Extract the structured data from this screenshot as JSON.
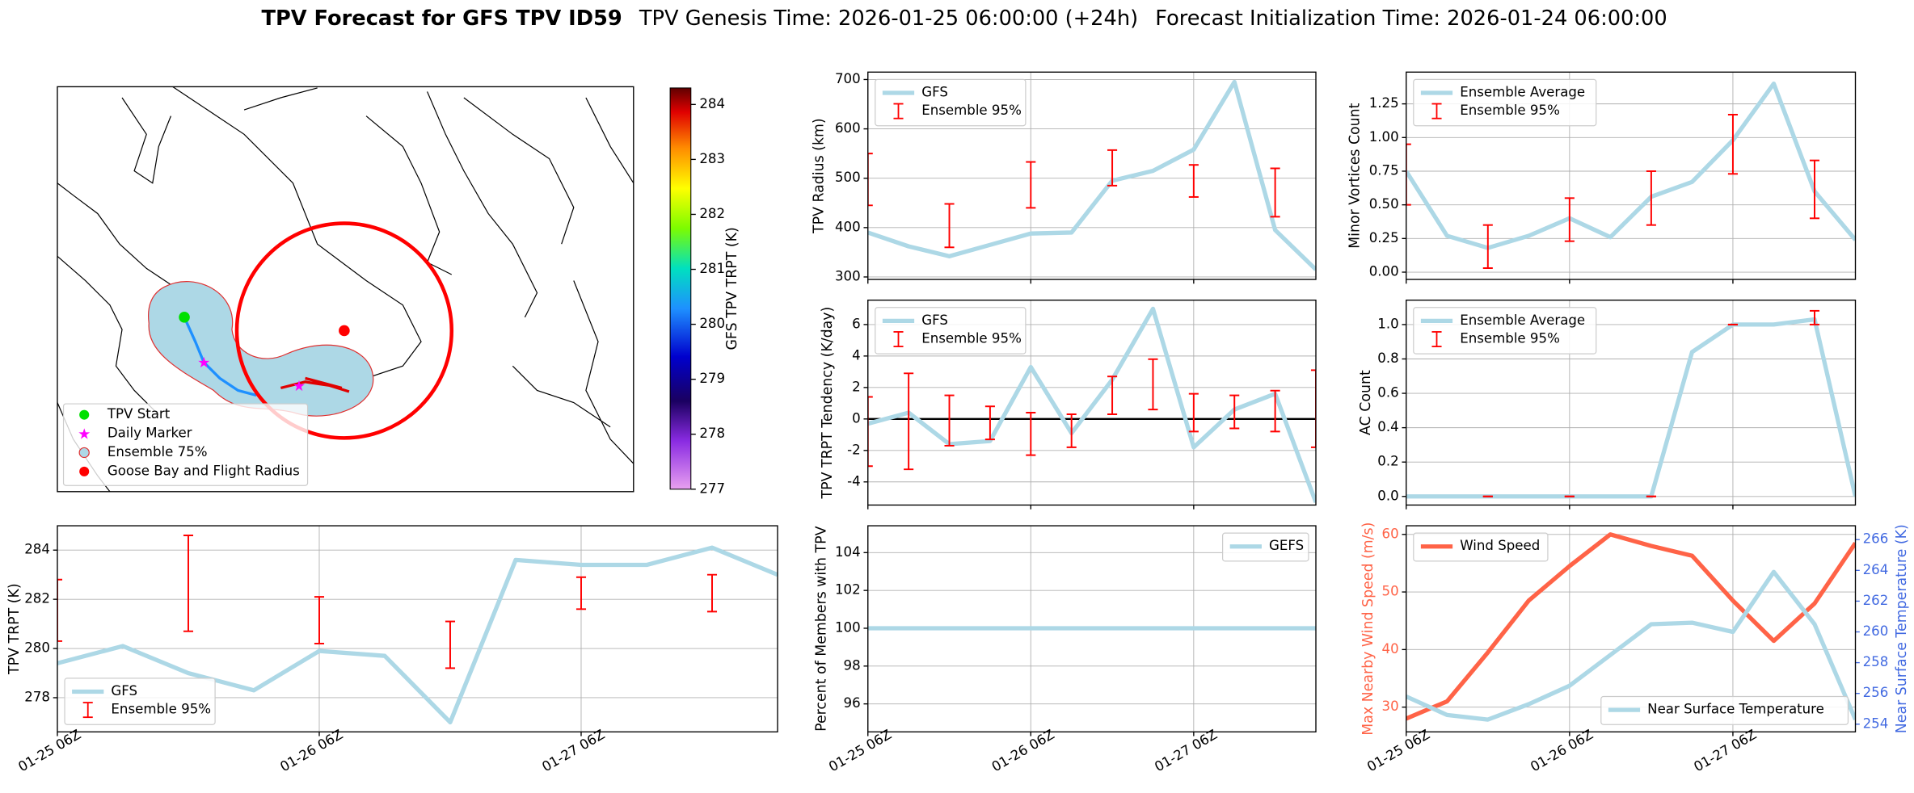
{
  "title": {
    "main": "TPV Forecast for GFS TPV ID59",
    "genesis": "TPV Genesis Time: 2026-01-25 06:00:00 (+24h)",
    "init": "Forecast Initialization Time: 2026-01-24 06:00:00"
  },
  "chart_data": [
    {
      "type": "map",
      "legend": [
        {
          "name": "TPV Start",
          "color": "#00e000"
        },
        {
          "name": "Daily Marker",
          "color": "#ff00ff"
        },
        {
          "name": "Ensemble 75%",
          "color": "#add8e6"
        },
        {
          "name": "Goose Bay and Flight Radius",
          "color": "#ff0000"
        }
      ],
      "colorbar": {
        "label": "GFS TPV TRPT (K)",
        "lim": [
          277,
          284.3
        ],
        "ticks": [
          277,
          278,
          279,
          280,
          281,
          282,
          283,
          284
        ]
      }
    },
    {
      "type": "line",
      "ylabel": "TPV Radius (km)",
      "x": [
        0,
        6,
        12,
        18,
        24,
        30,
        36,
        42,
        48,
        54,
        60,
        66
      ],
      "xlim": [
        0,
        66
      ],
      "xticks": [
        0,
        24,
        48
      ],
      "ylim": [
        295,
        715
      ],
      "yticks": [
        300,
        400,
        500,
        600,
        700
      ],
      "grid": true,
      "legend": "upper left",
      "series": [
        {
          "name": "GFS",
          "color": "#add8e6",
          "values": [
            390,
            362,
            342,
            365,
            388,
            390,
            495,
            515,
            558,
            695,
            395,
            315
          ]
        }
      ],
      "errorbars": {
        "name": "Ensemble 95%",
        "color": "#ff0000",
        "x": [
          0,
          12,
          24,
          36,
          48,
          60
        ],
        "low": [
          445,
          360,
          440,
          485,
          462,
          422
        ],
        "high": [
          550,
          448,
          533,
          557,
          527,
          520
        ]
      }
    },
    {
      "type": "line",
      "ylabel": "Minor Vortices Count",
      "x": [
        0,
        6,
        12,
        18,
        24,
        30,
        36,
        42,
        48,
        54,
        60,
        66
      ],
      "xlim": [
        0,
        66
      ],
      "xticks": [
        0,
        24,
        48
      ],
      "ylim": [
        -0.054,
        1.486
      ],
      "yticks": [
        {
          "value": 0,
          "label": "0.00"
        },
        {
          "value": 0.25,
          "label": "0.25"
        },
        {
          "value": 0.5,
          "label": "0.50"
        },
        {
          "value": 0.75,
          "label": "0.75"
        },
        {
          "value": 1,
          "label": "1.00"
        },
        {
          "value": 1.25,
          "label": "1.25"
        }
      ],
      "grid": true,
      "legend": "upper left",
      "series": [
        {
          "name": "Ensemble Average",
          "color": "#add8e6",
          "values": [
            0.75,
            0.27,
            0.18,
            0.27,
            0.4,
            0.26,
            0.56,
            0.67,
            0.98,
            1.4,
            0.6,
            0.24
          ]
        }
      ],
      "errorbars": {
        "name": "Ensemble 95%",
        "color": "#ff0000",
        "x": [
          0,
          12,
          24,
          36,
          48,
          60
        ],
        "low": [
          0.5,
          0.03,
          0.23,
          0.35,
          0.73,
          0.4
        ],
        "high": [
          0.95,
          0.35,
          0.55,
          0.75,
          1.17,
          0.83
        ]
      }
    },
    {
      "type": "line",
      "ylabel": "TPV TRPT Tendency (K/day)",
      "x": [
        0,
        6,
        12,
        18,
        24,
        30,
        36,
        42,
        48,
        54,
        60,
        66
      ],
      "xlim": [
        0,
        66
      ],
      "xticks": [
        0,
        24,
        48
      ],
      "ylim": [
        -5.47,
        7.55
      ],
      "yticks": [
        -4,
        -2,
        0,
        2,
        4,
        6
      ],
      "grid": true,
      "legend": "upper left",
      "hline": 0,
      "series": [
        {
          "name": "GFS",
          "color": "#add8e6",
          "values": [
            -0.3,
            0.4,
            -1.6,
            -1.4,
            3.3,
            -0.9,
            2.5,
            7.0,
            -1.8,
            0.6,
            1.6,
            -5.3
          ]
        }
      ],
      "errorbars": {
        "name": "Ensemble 95%",
        "color": "#ff0000",
        "x": [
          0,
          6,
          12,
          18,
          24,
          30,
          36,
          42,
          48,
          54,
          60,
          66
        ],
        "low": [
          -3.0,
          -3.2,
          -1.7,
          -1.3,
          -2.3,
          -1.8,
          0.3,
          0.6,
          -0.8,
          -0.6,
          -0.8,
          -1.8
        ],
        "high": [
          1.4,
          2.9,
          1.5,
          0.8,
          0.4,
          0.3,
          2.7,
          3.8,
          1.6,
          1.5,
          1.8,
          3.1
        ]
      }
    },
    {
      "type": "line",
      "ylabel": "AC Count",
      "x": [
        0,
        6,
        12,
        18,
        24,
        30,
        36,
        42,
        48,
        54,
        60,
        66
      ],
      "xlim": [
        0,
        66
      ],
      "xticks": [
        0,
        24,
        48
      ],
      "ylim": [
        -0.05,
        1.142
      ],
      "yticks": [
        {
          "value": 0,
          "label": "0.0"
        },
        {
          "value": 0.2,
          "label": "0.2"
        },
        {
          "value": 0.4,
          "label": "0.4"
        },
        {
          "value": 0.6,
          "label": "0.6"
        },
        {
          "value": 0.8,
          "label": "0.8"
        },
        {
          "value": 1,
          "label": "1.0"
        }
      ],
      "grid": true,
      "legend": "upper left",
      "series": [
        {
          "name": "Ensemble Average",
          "color": "#add8e6",
          "values": [
            0,
            0,
            0,
            0,
            0,
            0,
            0,
            0.84,
            1.0,
            1.0,
            1.03,
            0
          ]
        }
      ],
      "errorbars": {
        "name": "Ensemble 95%",
        "color": "#ff0000",
        "x": [
          12,
          24,
          36,
          48,
          60
        ],
        "low": [
          0,
          0,
          0,
          1,
          1
        ],
        "high": [
          0,
          0,
          0,
          1,
          1.08
        ]
      }
    },
    {
      "type": "line",
      "ylabel": "TPV TRPT (K)",
      "x": [
        0,
        6,
        12,
        18,
        24,
        30,
        36,
        42,
        48,
        54,
        60,
        66
      ],
      "xlim": [
        0,
        66
      ],
      "xticks": [
        {
          "value": 0,
          "label": "01-25 06Z"
        },
        {
          "value": 24,
          "label": "01-26 06Z"
        },
        {
          "value": 48,
          "label": "01-27 06Z"
        }
      ],
      "ylim": [
        276.61,
        284.99
      ],
      "yticks": [
        278,
        280,
        282,
        284
      ],
      "grid": true,
      "legend": "lower left",
      "series": [
        {
          "name": "GFS",
          "color": "#add8e6",
          "values": [
            279.4,
            280.1,
            279.0,
            278.3,
            279.9,
            279.7,
            277.0,
            283.6,
            283.4,
            283.4,
            284.1,
            283.0
          ]
        }
      ],
      "errorbars": {
        "name": "Ensemble 95%",
        "color": "#ff0000",
        "x": [
          0,
          12,
          24,
          36,
          48,
          60
        ],
        "low": [
          280.3,
          280.7,
          280.2,
          279.2,
          281.6,
          281.5
        ],
        "high": [
          282.8,
          284.6,
          282.1,
          281.1,
          282.9,
          283.0
        ]
      }
    },
    {
      "type": "line",
      "ylabel": "Percent of Members with TPV",
      "x": [
        0,
        6,
        12,
        18,
        24,
        30,
        36,
        42,
        48,
        54,
        60,
        66
      ],
      "xlim": [
        0,
        66
      ],
      "xticks": [
        {
          "value": 0,
          "label": "01-25 06Z"
        },
        {
          "value": 24,
          "label": "01-26 06Z"
        },
        {
          "value": 48,
          "label": "01-27 06Z"
        }
      ],
      "ylim": [
        94.52,
        105.42
      ],
      "yticks": [
        96,
        98,
        100,
        102,
        104
      ],
      "grid": true,
      "legend": "upper right",
      "series": [
        {
          "name": "GEFS",
          "color": "#add8e6",
          "values": [
            100,
            100,
            100,
            100,
            100,
            100,
            100,
            100,
            100,
            100,
            100,
            100
          ]
        }
      ]
    },
    {
      "type": "line",
      "ylabel": "Max Nearby Wind Speed (m/s)",
      "ylabel_color": "#ff6347",
      "y2label": "Near Surface Temperature (K)",
      "y2label_color": "#4169e1",
      "x": [
        0,
        6,
        12,
        18,
        24,
        30,
        36,
        42,
        48,
        54,
        60,
        66
      ],
      "xlim": [
        0,
        66
      ],
      "xticks": [
        {
          "value": 0,
          "label": "01-25 06Z"
        },
        {
          "value": 24,
          "label": "01-26 06Z"
        },
        {
          "value": 48,
          "label": "01-27 06Z"
        }
      ],
      "ylim": [
        25.7,
        61.5
      ],
      "yticks": [
        30,
        40,
        50,
        60
      ],
      "y2lim": [
        253.5,
        266.9
      ],
      "y2ticks": [
        254,
        256,
        258,
        260,
        262,
        264,
        266
      ],
      "grid": true,
      "series": [
        {
          "name": "Wind Speed",
          "color": "#ff6347",
          "legend": "upper left",
          "values": [
            28,
            31,
            39.5,
            48.5,
            54.5,
            60,
            58,
            56.3,
            48.5,
            41.5,
            48,
            58.5
          ]
        },
        {
          "name": "Near Surface Temperature",
          "color": "#add8e6",
          "axis": "y2",
          "legend": "lower right",
          "values": [
            255.8,
            254.6,
            254.3,
            255.3,
            256.5,
            258.5,
            260.5,
            260.6,
            260,
            263.9,
            260.5,
            254.3
          ]
        }
      ]
    }
  ]
}
